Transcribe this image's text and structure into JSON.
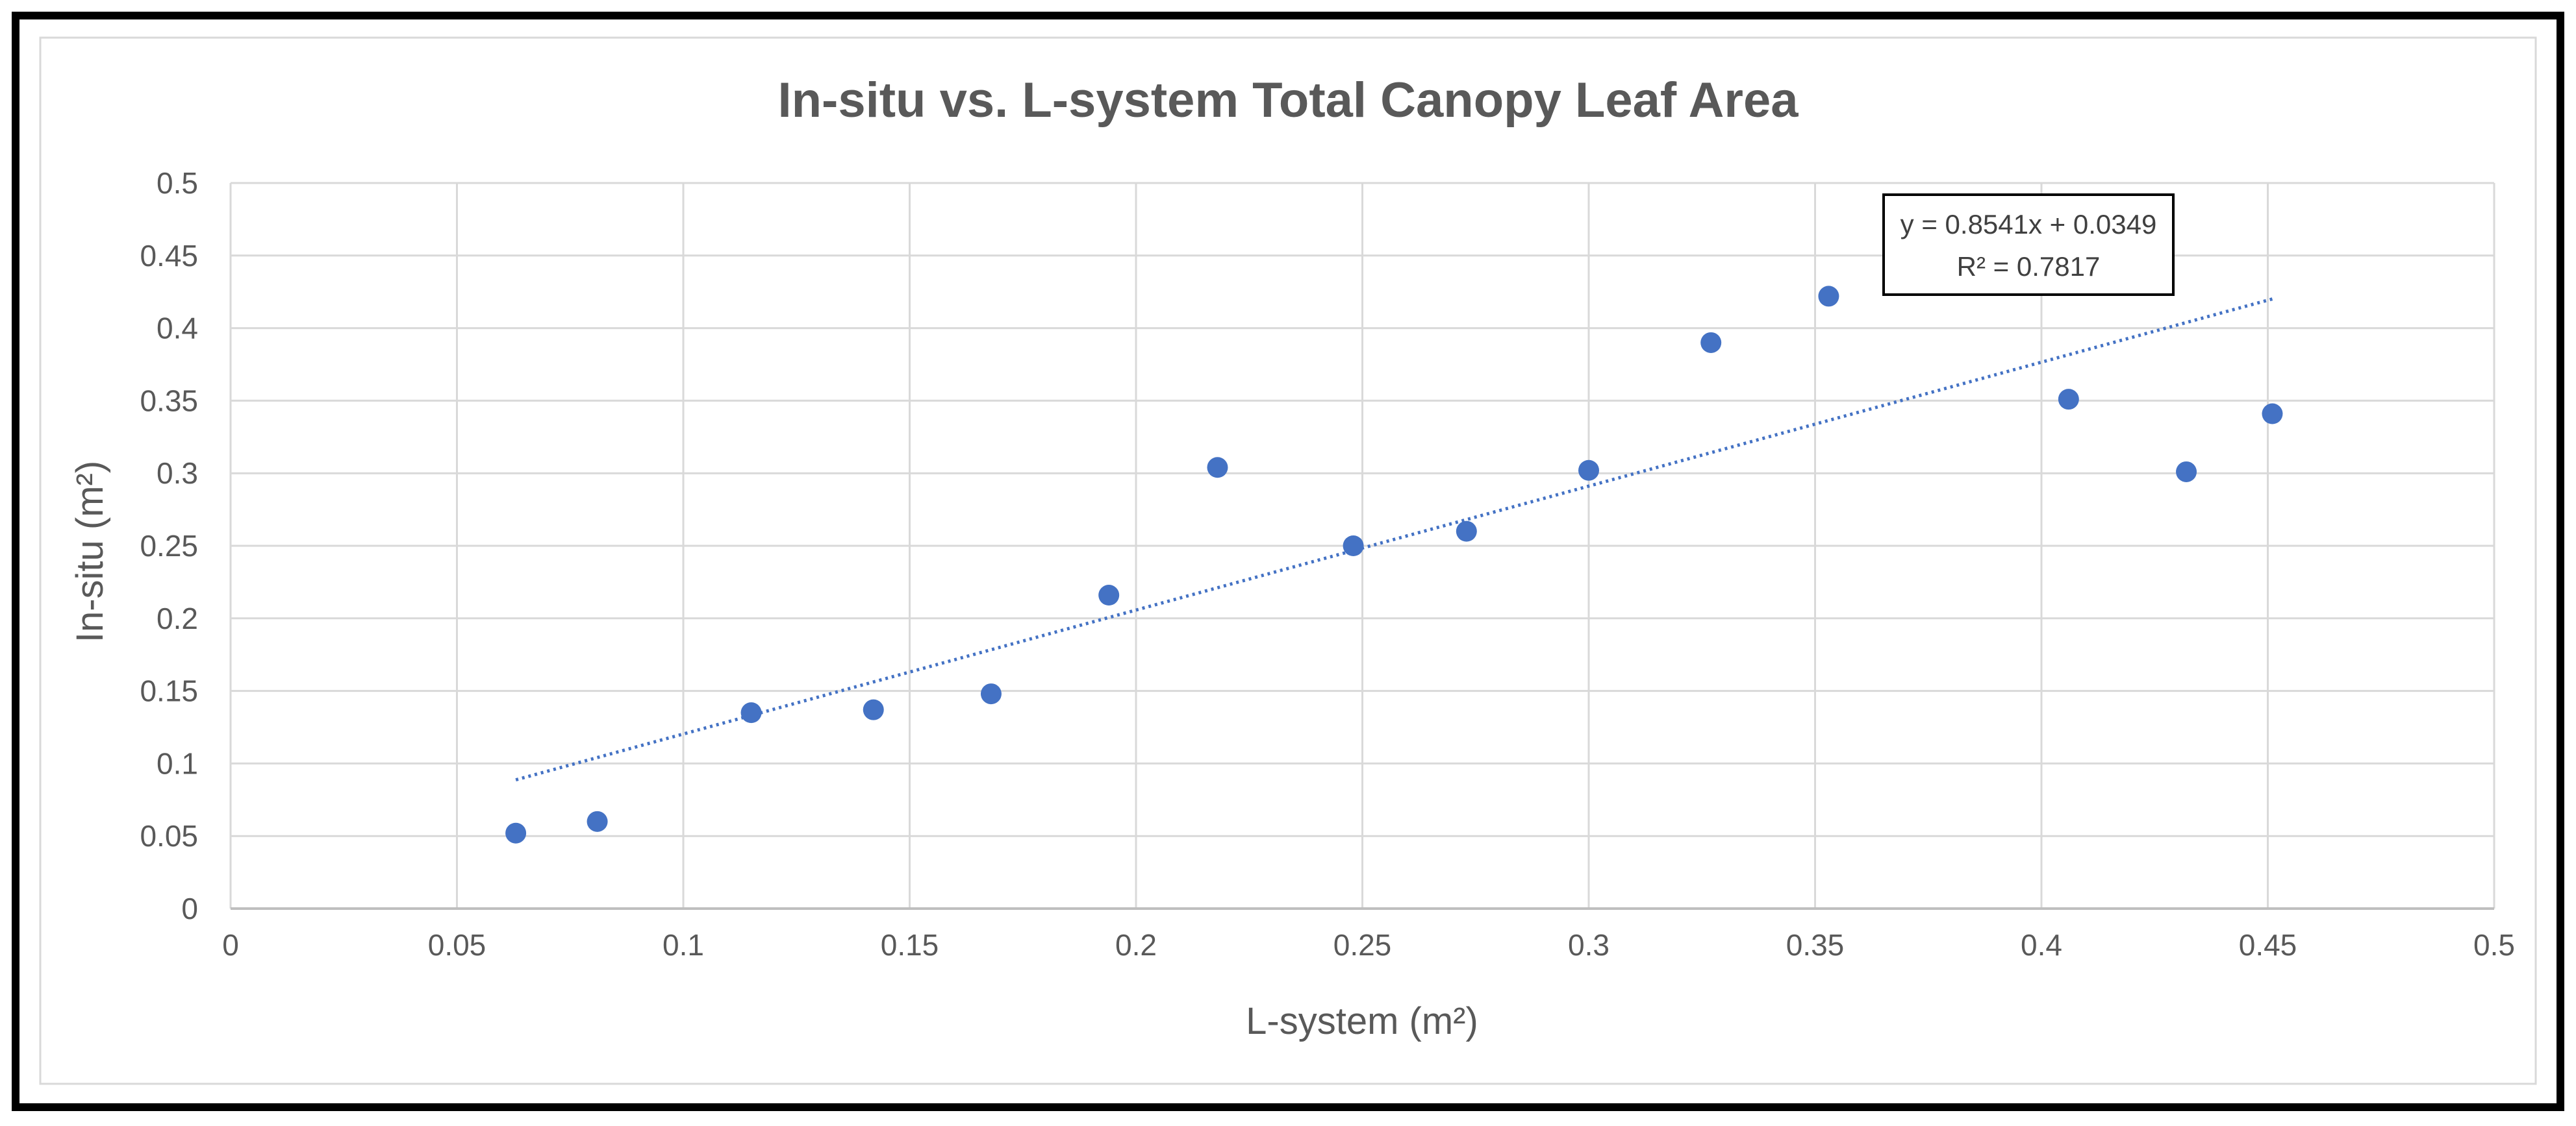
{
  "chart_data": {
    "type": "scatter",
    "title": "In-situ vs. L-system Total Canopy Leaf Area",
    "xlabel": "L-system (m²)",
    "ylabel": "In-situ (m²)",
    "xlim": [
      0,
      0.5
    ],
    "ylim": [
      0,
      0.5
    ],
    "x_ticks": [
      "0",
      "0.05",
      "0.1",
      "0.15",
      "0.2",
      "0.25",
      "0.3",
      "0.35",
      "0.4",
      "0.45",
      "0.5"
    ],
    "y_ticks": [
      "0",
      "0.05",
      "0.1",
      "0.15",
      "0.2",
      "0.25",
      "0.3",
      "0.35",
      "0.4",
      "0.45",
      "0.5"
    ],
    "grid": true,
    "marker_color": "#4472c4",
    "trendline": {
      "type": "linear",
      "slope": 0.8541,
      "intercept": 0.0349,
      "x_range": [
        0.063,
        0.451
      ],
      "style": "dotted",
      "color": "#4472c4"
    },
    "annotation": {
      "equation": "y = 0.8541x + 0.0349",
      "r_squared": "R² = 0.7817"
    },
    "series": [
      {
        "x": [
          0.063,
          0.081,
          0.115,
          0.142,
          0.168,
          0.194,
          0.218,
          0.248,
          0.273,
          0.3,
          0.327,
          0.353,
          0.406,
          0.432,
          0.451
        ],
        "y": [
          0.052,
          0.06,
          0.135,
          0.137,
          0.148,
          0.216,
          0.304,
          0.25,
          0.26,
          0.302,
          0.39,
          0.422,
          0.351,
          0.301,
          0.341
        ]
      }
    ]
  }
}
